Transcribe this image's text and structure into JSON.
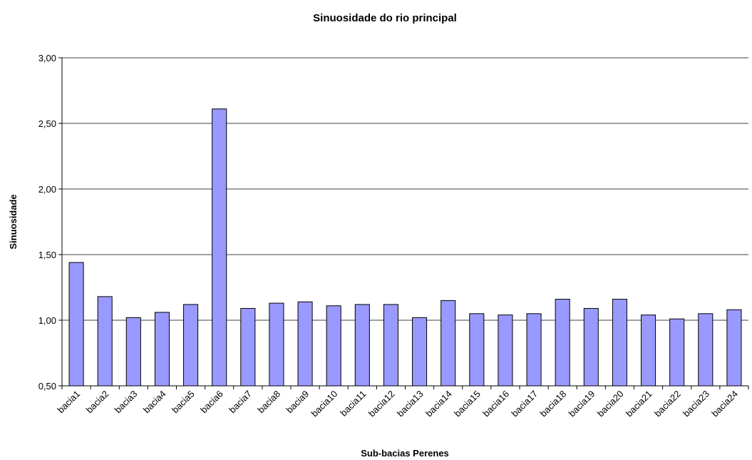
{
  "chart_data": {
    "type": "bar",
    "title": "Sinuosidade do rio principal",
    "x_label": "Sub-bacias Perenes",
    "y_label": "Sinuosidade",
    "categories": [
      "bacia1",
      "bacia2",
      "bacia3",
      "bacia4",
      "bacia5",
      "bacia6",
      "bacia7",
      "bacia8",
      "bacia9",
      "bacia10",
      "bacia11",
      "bacia12",
      "bacia13",
      "bacia14",
      "bacia15",
      "bacia16",
      "bacia17",
      "bacia18",
      "bacia19",
      "bacia20",
      "bacia21",
      "bacia22",
      "bacia23",
      "bacia24"
    ],
    "values": [
      1.44,
      1.18,
      1.02,
      1.06,
      1.12,
      2.61,
      1.09,
      1.13,
      1.14,
      1.11,
      1.12,
      1.12,
      1.02,
      1.15,
      1.05,
      1.04,
      1.05,
      1.16,
      1.09,
      1.16,
      1.04,
      1.01,
      1.05,
      1.08
    ],
    "color": "#9999ff",
    "ylim": [
      0.5,
      3.0
    ],
    "yticks": [
      {
        "value": 0.5,
        "label": "0,50"
      },
      {
        "value": 1.0,
        "label": "1,00"
      },
      {
        "value": 1.5,
        "label": "1,50"
      },
      {
        "value": 2.0,
        "label": "2,00"
      },
      {
        "value": 2.5,
        "label": "2,50"
      },
      {
        "value": 3.0,
        "label": "3,00"
      }
    ],
    "grid": true
  }
}
